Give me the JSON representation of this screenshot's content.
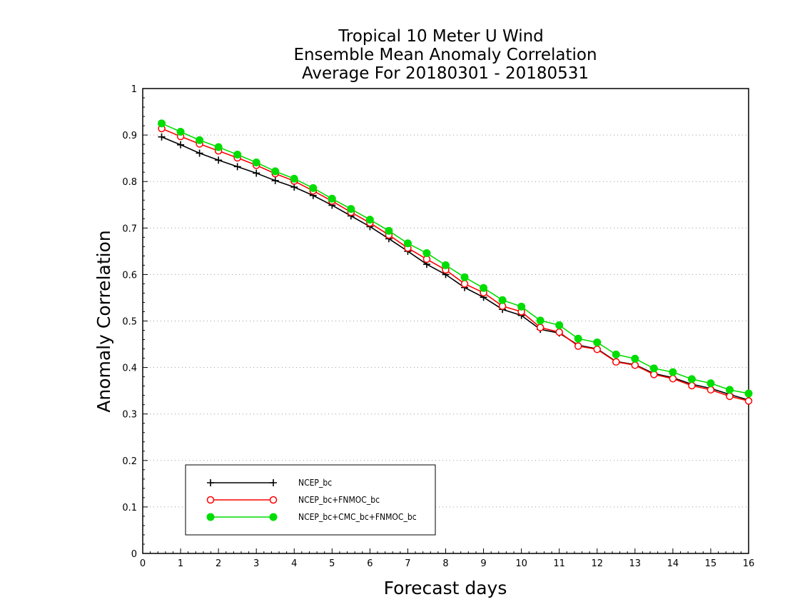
{
  "chart_data": {
    "type": "line",
    "title": "Tropical 10 Meter U Wind",
    "subtitle_lines": [
      "Ensemble Mean Anomaly Correlation",
      "Average For 20180301 - 20180531"
    ],
    "xlabel": "Forecast days",
    "ylabel": "Anomaly Correlation",
    "xlim": [
      0,
      16
    ],
    "ylim": [
      0,
      1
    ],
    "xticks": [
      0,
      1,
      2,
      3,
      4,
      5,
      6,
      7,
      8,
      9,
      10,
      11,
      12,
      13,
      14,
      15,
      16
    ],
    "yticks": [
      0,
      0.1,
      0.2,
      0.3,
      0.4,
      0.5,
      0.6,
      0.7,
      0.8,
      0.9,
      1
    ],
    "ytick_labels": [
      "0",
      "0.1",
      "0.2",
      "0.3",
      "0.4",
      "0.5",
      "0.6",
      "0.7",
      "0.8",
      "0.9",
      "1"
    ],
    "grid": true,
    "legend_position": "bottom-left",
    "x": [
      0.5,
      1,
      1.5,
      2,
      2.5,
      3,
      3.5,
      4,
      4.5,
      5,
      5.5,
      6,
      6.5,
      7,
      7.5,
      8,
      8.5,
      9,
      9.5,
      10,
      10.5,
      11,
      11.5,
      12,
      12.5,
      13,
      13.5,
      14,
      14.5,
      15,
      15.5,
      16
    ],
    "series": [
      {
        "name": "NCEP_bc",
        "color": "#000000",
        "marker": "plus",
        "values": [
          0.896,
          0.879,
          0.861,
          0.846,
          0.832,
          0.818,
          0.802,
          0.788,
          0.77,
          0.749,
          0.726,
          0.703,
          0.677,
          0.65,
          0.622,
          0.6,
          0.572,
          0.551,
          0.525,
          0.512,
          0.482,
          0.474,
          0.448,
          0.44,
          0.413,
          0.406,
          0.387,
          0.378,
          0.364,
          0.355,
          0.342,
          0.33
        ]
      },
      {
        "name": "NCEP_bc+FNMOC_bc",
        "color": "#ff0000",
        "marker": "circle-open",
        "values": [
          0.914,
          0.897,
          0.881,
          0.866,
          0.851,
          0.835,
          0.817,
          0.801,
          0.78,
          0.758,
          0.734,
          0.711,
          0.685,
          0.657,
          0.633,
          0.61,
          0.58,
          0.561,
          0.532,
          0.52,
          0.486,
          0.476,
          0.446,
          0.439,
          0.412,
          0.405,
          0.385,
          0.376,
          0.361,
          0.352,
          0.338,
          0.328
        ]
      },
      {
        "name": "NCEP_bc+CMC_bc+FNMOC_bc",
        "color": "#00dd00",
        "marker": "circle-filled",
        "values": [
          0.925,
          0.907,
          0.889,
          0.874,
          0.858,
          0.841,
          0.822,
          0.806,
          0.786,
          0.763,
          0.741,
          0.718,
          0.694,
          0.667,
          0.646,
          0.62,
          0.594,
          0.571,
          0.545,
          0.531,
          0.501,
          0.491,
          0.462,
          0.454,
          0.428,
          0.419,
          0.398,
          0.39,
          0.375,
          0.366,
          0.352,
          0.344
        ]
      }
    ]
  }
}
